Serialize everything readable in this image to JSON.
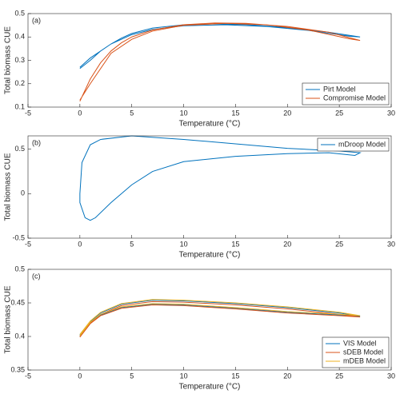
{
  "chart_data": [
    {
      "type": "line",
      "panel_label": "(a)",
      "xlabel": "Temperature (°C)",
      "ylabel": "Total biomass CUE",
      "xlim": [
        -5,
        30
      ],
      "xticks": [
        -5,
        0,
        5,
        10,
        15,
        20,
        25,
        30
      ],
      "ylim": [
        0.1,
        0.5
      ],
      "yticks": [
        0.1,
        0.2,
        0.3,
        0.4,
        0.5
      ],
      "legend": "lower-right",
      "series": [
        {
          "name": "Pirt Model",
          "color": "#0072BD",
          "x": [
            0,
            1,
            2,
            3,
            4,
            5,
            7,
            10,
            13,
            16,
            20,
            24,
            27,
            26,
            22,
            18,
            14,
            10,
            7,
            5,
            3,
            1,
            0
          ],
          "values": [
            0.265,
            0.3,
            0.34,
            0.37,
            0.395,
            0.415,
            0.438,
            0.452,
            0.456,
            0.453,
            0.44,
            0.42,
            0.4,
            0.403,
            0.428,
            0.445,
            0.452,
            0.448,
            0.432,
            0.41,
            0.37,
            0.31,
            0.27
          ]
        },
        {
          "name": "Compromise Model",
          "color": "#D95319",
          "x": [
            0,
            1,
            2,
            3,
            4,
            5,
            7,
            10,
            13,
            16,
            20,
            24,
            27,
            26,
            22,
            18,
            14,
            10,
            7,
            5,
            3,
            1,
            0
          ],
          "values": [
            0.125,
            0.22,
            0.29,
            0.34,
            0.375,
            0.4,
            0.43,
            0.452,
            0.46,
            0.458,
            0.445,
            0.42,
            0.385,
            0.392,
            0.43,
            0.452,
            0.458,
            0.45,
            0.425,
            0.39,
            0.33,
            0.2,
            0.13
          ]
        }
      ]
    },
    {
      "type": "line",
      "panel_label": "(b)",
      "xlabel": "Temperature (°C)",
      "ylabel": "Total biomass CUE",
      "xlim": [
        -5,
        30
      ],
      "xticks": [
        -5,
        0,
        5,
        10,
        15,
        20,
        25,
        30
      ],
      "ylim": [
        -0.5,
        0.65
      ],
      "yticks": [
        -0.5,
        0,
        0.5
      ],
      "legend": "upper-right",
      "series": [
        {
          "name": "mDroop Model",
          "color": "#0072BD",
          "x": [
            0,
            0.2,
            1,
            2,
            5,
            10,
            15,
            20,
            25,
            27,
            26.5,
            24,
            20,
            15,
            10,
            7,
            5,
            3,
            1.5,
            1,
            0.5,
            0,
            0
          ],
          "values": [
            0,
            0.35,
            0.55,
            0.61,
            0.65,
            0.61,
            0.56,
            0.51,
            0.48,
            0.46,
            0.43,
            0.46,
            0.45,
            0.42,
            0.36,
            0.25,
            0.1,
            -0.1,
            -0.27,
            -0.3,
            -0.27,
            -0.1,
            0
          ]
        }
      ]
    },
    {
      "type": "line",
      "panel_label": "(c)",
      "xlabel": "Temperature (°C)",
      "ylabel": "Total biomass CUE",
      "xlim": [
        -5,
        30
      ],
      "xticks": [
        -5,
        0,
        5,
        10,
        15,
        20,
        25,
        30
      ],
      "ylim": [
        0.35,
        0.5
      ],
      "yticks": [
        0.35,
        0.4,
        0.45,
        0.5
      ],
      "legend": "lower-right",
      "series": [
        {
          "name": "VIS Model",
          "color": "#0072BD",
          "x": [
            0,
            1,
            2,
            4,
            7,
            10,
            15,
            20,
            25,
            27,
            25,
            20,
            15,
            10,
            7,
            4,
            2,
            1,
            0
          ],
          "values": [
            0.4,
            0.42,
            0.432,
            0.443,
            0.448,
            0.447,
            0.442,
            0.436,
            0.432,
            0.43,
            0.435,
            0.443,
            0.449,
            0.453,
            0.454,
            0.448,
            0.435,
            0.422,
            0.402
          ]
        },
        {
          "name": "sDEB Model",
          "color": "#D95319",
          "x": [
            0,
            1,
            2,
            4,
            7,
            10,
            15,
            20,
            25,
            27,
            25,
            20,
            15,
            10,
            7,
            4,
            2,
            1,
            0
          ],
          "values": [
            0.399,
            0.419,
            0.431,
            0.442,
            0.447,
            0.446,
            0.441,
            0.435,
            0.431,
            0.429,
            0.433,
            0.441,
            0.447,
            0.451,
            0.452,
            0.446,
            0.433,
            0.42,
            0.4
          ]
        },
        {
          "name": "mDEB Model",
          "color": "#EDB120",
          "x": [
            0,
            1,
            2,
            4,
            7,
            10,
            15,
            20,
            25,
            27,
            25,
            20,
            15,
            10,
            7,
            4,
            2,
            1,
            0
          ],
          "values": [
            0.401,
            0.421,
            0.433,
            0.444,
            0.449,
            0.448,
            0.443,
            0.437,
            0.433,
            0.431,
            0.436,
            0.444,
            0.45,
            0.454,
            0.455,
            0.449,
            0.436,
            0.423,
            0.403
          ]
        }
      ]
    }
  ]
}
